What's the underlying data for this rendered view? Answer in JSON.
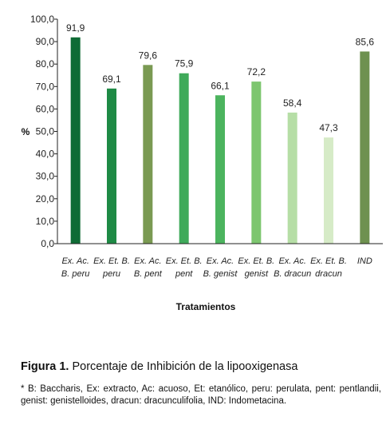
{
  "chart_data": {
    "type": "bar",
    "categories": [
      [
        "Ex. Ac.",
        "B. peru"
      ],
      [
        "Ex. Et. B.",
        "peru"
      ],
      [
        "Ex. Ac.",
        "B. pent"
      ],
      [
        "Ex. Et. B.",
        "pent"
      ],
      [
        "Ex. Ac.",
        "B. genist"
      ],
      [
        "Ex. Et. B.",
        "genist"
      ],
      [
        "Ex. Ac.",
        "B. dracun"
      ],
      [
        "Ex. Et. B.",
        "dracun"
      ],
      [
        "IND"
      ]
    ],
    "values": [
      91.9,
      69.1,
      79.6,
      75.9,
      66.1,
      72.2,
      58.4,
      47.3,
      85.6
    ],
    "value_labels": [
      "91,9",
      "69,1",
      "79,6",
      "75,9",
      "66,1",
      "72,2",
      "58,4",
      "47,3",
      "85,6"
    ],
    "bar_colors": [
      "#0f6b35",
      "#1e8a45",
      "#7a9a52",
      "#3faa5a",
      "#4cb45e",
      "#7dc66f",
      "#b6dea6",
      "#d6ebc7",
      "#6e9150"
    ],
    "ylabel": "%",
    "xlabel": "Tratamientos",
    "ylim": [
      0,
      100
    ],
    "yticks": [
      "0,0",
      "10,0",
      "20,0",
      "30,0",
      "40,0",
      "50,0",
      "60,0",
      "70,0",
      "80,0",
      "90,0",
      "100,0"
    ],
    "grid": false
  },
  "caption": {
    "label": "Figura 1.",
    "text": " Porcentaje de Inhibición de la lipooxigenasa"
  },
  "footnote": "* B: Baccharis, Ex: extracto, Ac: acuoso, Et: etanólico, peru: perulata, pent: pentlandii, genist: genistelloides, dracun: dracunculifolia, IND: Indometacina."
}
